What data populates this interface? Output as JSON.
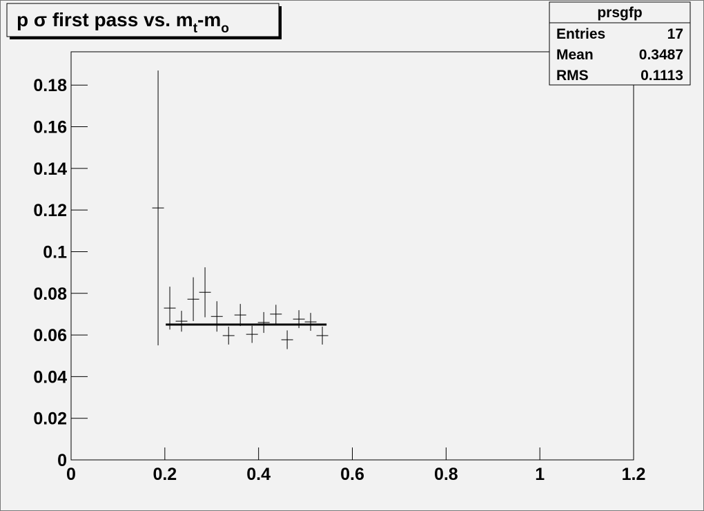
{
  "chart_data": {
    "type": "errorbar",
    "title": [
      "p σ first pass vs. m",
      "t",
      "-m",
      "o"
    ],
    "stats": {
      "name": "prsgfp",
      "rows": [
        [
          "Entries",
          "17"
        ],
        [
          "Mean",
          "0.3487"
        ],
        [
          "RMS",
          "0.1113"
        ]
      ]
    },
    "x": [
      0.1856,
      0.2106,
      0.2356,
      0.2607,
      0.2857,
      0.311,
      0.336,
      0.361,
      0.386,
      0.411,
      0.437,
      0.461,
      0.486,
      0.511,
      0.536
    ],
    "values": [
      0.121,
      0.0729,
      0.0666,
      0.0772,
      0.0805,
      0.0689,
      0.0597,
      0.0696,
      0.0603,
      0.066,
      0.07,
      0.0577,
      0.0676,
      0.0663,
      0.0597
    ],
    "errors": [
      0.066,
      0.0103,
      0.005,
      0.0105,
      0.012,
      0.0073,
      0.0043,
      0.0053,
      0.0041,
      0.005,
      0.0045,
      0.0045,
      0.0043,
      0.0043,
      0.0043
    ],
    "xerr": 0.0125,
    "fit": {
      "x": [
        0.202,
        0.545
      ],
      "value": 0.065
    },
    "color": "#000000",
    "xlim": [
      0,
      1.2
    ],
    "xticks": [
      0,
      0.2,
      0.4,
      0.6,
      0.8,
      1,
      1.2
    ],
    "ylim": [
      0,
      0.196
    ],
    "yticks": [
      0,
      0.02,
      0.04,
      0.06,
      0.08,
      0.1,
      0.12,
      0.14,
      0.16,
      0.18
    ]
  }
}
